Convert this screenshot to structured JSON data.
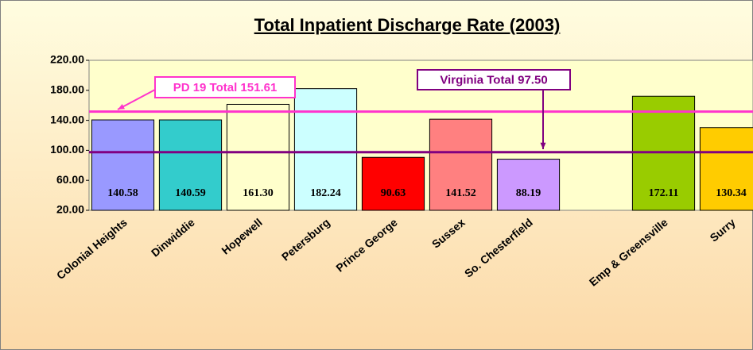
{
  "chart_data": {
    "type": "bar",
    "title": "Total Inpatient Discharge Rate (2003)",
    "categories": [
      "Colonial Heights",
      "Dinwiddie",
      "Hopewell",
      "Petersburg",
      "Prince George",
      "Sussex",
      "So. Chesterfield",
      null,
      "Emp & Greensville",
      "Surry"
    ],
    "values": [
      140.58,
      140.59,
      161.3,
      182.24,
      90.63,
      141.52,
      88.19,
      null,
      172.11,
      130.34
    ],
    "value_labels": [
      "140.58",
      "140.59",
      "161.30",
      "182.24",
      "90.63",
      "141.52",
      "88.19",
      null,
      "172.11",
      "130.34"
    ],
    "colors": [
      "#9999ff",
      "#33cccc",
      "#ffffcc",
      "#ccffff",
      "#ff0000",
      "#ff8080",
      "#cc99ff",
      null,
      "#99cc00",
      "#ffcc00"
    ],
    "ylim": [
      20,
      220
    ],
    "yticks": [
      {
        "value": 20,
        "label": "20.00"
      },
      {
        "value": 60,
        "label": "60.00"
      },
      {
        "value": 100,
        "label": "100.00"
      },
      {
        "value": 140,
        "label": "140.00"
      },
      {
        "value": 180,
        "label": "180.00"
      },
      {
        "value": 220,
        "label": "220.00"
      }
    ],
    "reference_lines": [
      {
        "label": "PD 19 Total 151.61",
        "value": 151.61,
        "color": "#ff33cc"
      },
      {
        "label": "Virginia Total 97.50",
        "value": 97.5,
        "color": "#800080"
      }
    ]
  }
}
